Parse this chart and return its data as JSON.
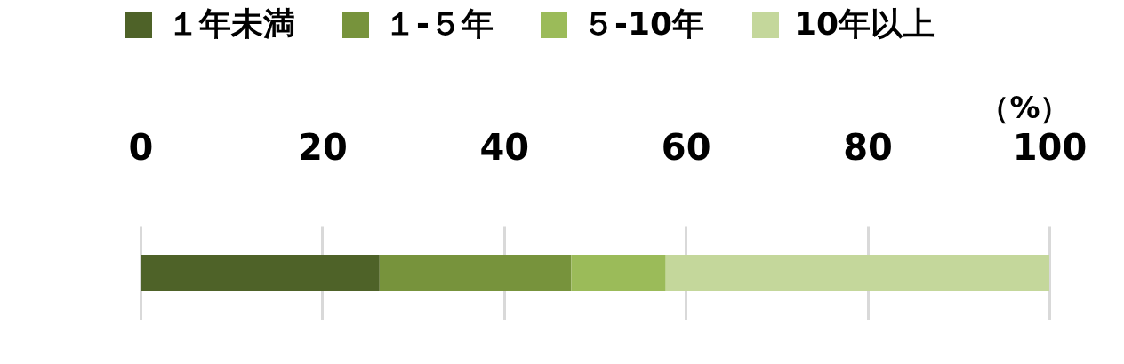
{
  "chart_data": {
    "type": "bar",
    "orientation": "horizontal",
    "stacked": true,
    "categories": [
      null
    ],
    "series": [
      {
        "name": "１年未満",
        "color": "#4e6228",
        "values": [
          26.3
        ]
      },
      {
        "name": "１-５年",
        "color": "#77933c",
        "values": [
          21.1
        ]
      },
      {
        "name": "５-10年",
        "color": "#9bbb59",
        "values": [
          10.4
        ]
      },
      {
        "name": "10年以上",
        "color": "#c4d79b",
        "values": [
          42.2
        ]
      }
    ],
    "xlabel": "（%）",
    "xlim": [
      0,
      100
    ],
    "xticks": [
      0,
      20,
      40,
      60,
      80,
      100
    ],
    "grid": "x",
    "legend": "top"
  }
}
